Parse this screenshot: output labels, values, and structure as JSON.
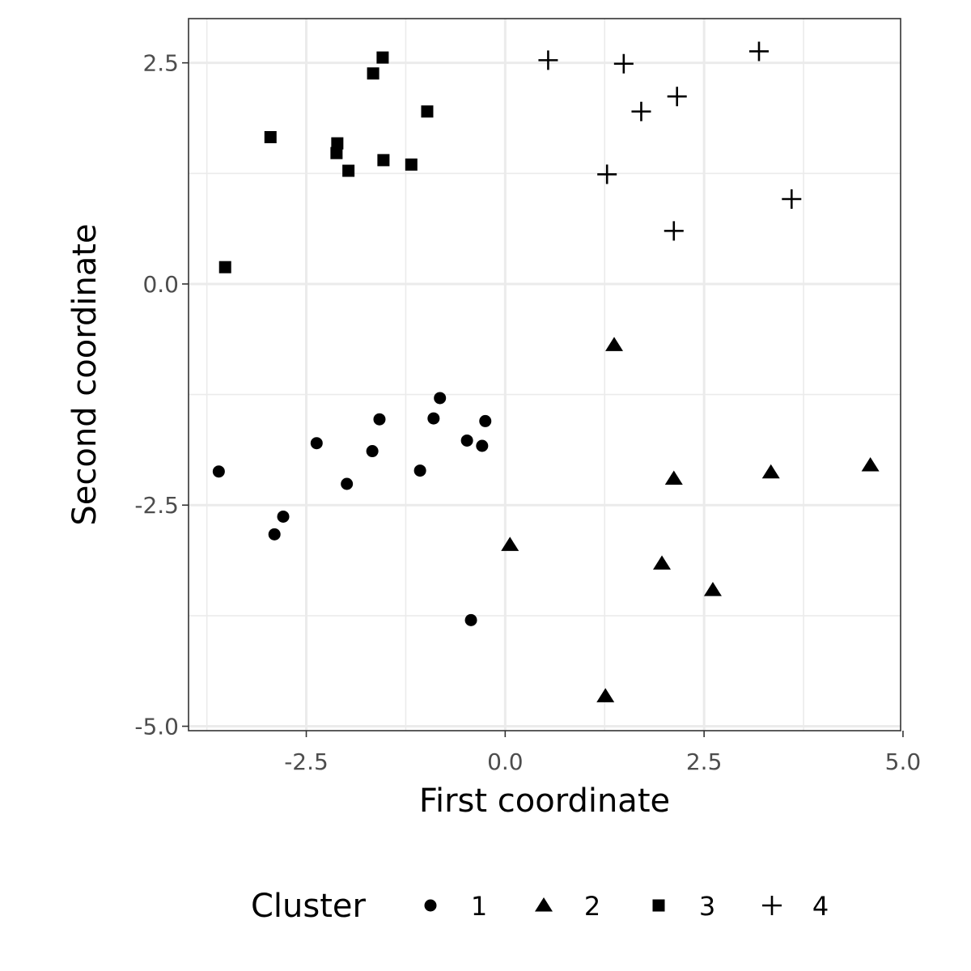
{
  "chart_data": {
    "type": "scatter",
    "xlabel": "First coordinate",
    "ylabel": "Second coordinate",
    "xlim": [
      -3.98,
      4.97
    ],
    "ylim": [
      -5.05,
      3.0
    ],
    "x_ticks": [
      -2.5,
      0.0,
      2.5,
      5.0
    ],
    "x_tick_labels": [
      "-2.5",
      "0.0",
      "2.5",
      "5.0"
    ],
    "y_ticks": [
      -5.0,
      -2.5,
      0.0,
      2.5
    ],
    "y_tick_labels": [
      "-5.0",
      "-2.5",
      "0.0",
      "2.5"
    ],
    "grid": true,
    "legend_title": "Cluster",
    "legend_position": "bottom",
    "series": [
      {
        "name": "1",
        "shape": "circle",
        "points": [
          [
            -3.6,
            -2.12
          ],
          [
            -2.9,
            -2.83
          ],
          [
            -2.79,
            -2.63
          ],
          [
            -2.37,
            -1.8
          ],
          [
            -1.99,
            -2.26
          ],
          [
            -1.67,
            -1.89
          ],
          [
            -1.58,
            -1.53
          ],
          [
            -1.07,
            -2.11
          ],
          [
            -0.9,
            -1.52
          ],
          [
            -0.82,
            -1.29
          ],
          [
            -0.48,
            -1.77
          ],
          [
            -0.29,
            -1.83
          ],
          [
            -0.25,
            -1.55
          ],
          [
            -0.43,
            -3.8
          ]
        ]
      },
      {
        "name": "2",
        "shape": "triangle",
        "points": [
          [
            1.37,
            -0.69
          ],
          [
            2.12,
            -2.2
          ],
          [
            3.34,
            -2.13
          ],
          [
            4.59,
            -2.05
          ],
          [
            0.06,
            -2.95
          ],
          [
            1.97,
            -3.16
          ],
          [
            2.61,
            -3.46
          ],
          [
            1.26,
            -4.66
          ]
        ]
      },
      {
        "name": "3",
        "shape": "square",
        "points": [
          [
            -3.52,
            0.19
          ],
          [
            -2.95,
            1.66
          ],
          [
            -2.11,
            1.59
          ],
          [
            -2.12,
            1.48
          ],
          [
            -1.97,
            1.28
          ],
          [
            -1.53,
            1.4
          ],
          [
            -1.18,
            1.35
          ],
          [
            -0.98,
            1.95
          ],
          [
            -1.66,
            2.38
          ],
          [
            -1.54,
            2.56
          ]
        ]
      },
      {
        "name": "4",
        "shape": "cross",
        "points": [
          [
            0.54,
            2.53
          ],
          [
            1.49,
            2.49
          ],
          [
            1.71,
            1.95
          ],
          [
            2.16,
            2.12
          ],
          [
            3.19,
            2.63
          ],
          [
            1.28,
            1.24
          ],
          [
            3.6,
            0.96
          ],
          [
            2.12,
            0.6
          ]
        ]
      }
    ]
  }
}
